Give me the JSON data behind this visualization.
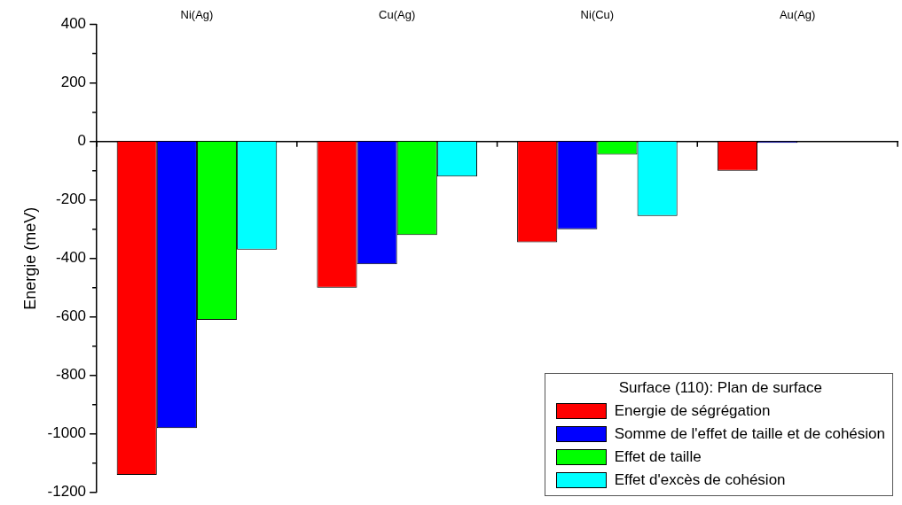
{
  "chart_data": {
    "type": "bar",
    "ylabel": "Energie (meV)",
    "legend_title": "Surface (110): Plan de surface",
    "categories": [
      "Ni(Ag)",
      "Cu(Ag)",
      "Ni(Cu)",
      "Au(Ag)"
    ],
    "series": [
      {
        "name": "Energie de ségrégation",
        "color": "#ff0000",
        "values": [
          -1140,
          -500,
          -345,
          -100
        ]
      },
      {
        "name": "Somme de l'effet de taille et de cohésion",
        "color": "#0000ff",
        "values": [
          -980,
          -420,
          -300,
          -5
        ]
      },
      {
        "name": "Effet de taille",
        "color": "#00ff00",
        "values": [
          -610,
          -320,
          -45,
          0
        ]
      },
      {
        "name": "Effet d'excès de cohésion",
        "color": "#00ffff",
        "values": [
          -370,
          -120,
          -255,
          0
        ]
      }
    ],
    "ylim": [
      -1200,
      400
    ],
    "yticks": [
      -1200,
      {
        "value": -1100,
        "label": null
      },
      -1000,
      {
        "value": -900,
        "label": null
      },
      -800,
      {
        "value": -700,
        "label": null
      },
      -600,
      {
        "value": -500,
        "label": null
      },
      -400,
      {
        "value": -300,
        "label": null
      },
      -200,
      {
        "value": -100,
        "label": null
      },
      0,
      {
        "value": 100,
        "label": null
      },
      200,
      {
        "value": 300,
        "label": null
      },
      400
    ],
    "legend": "bottom right"
  }
}
